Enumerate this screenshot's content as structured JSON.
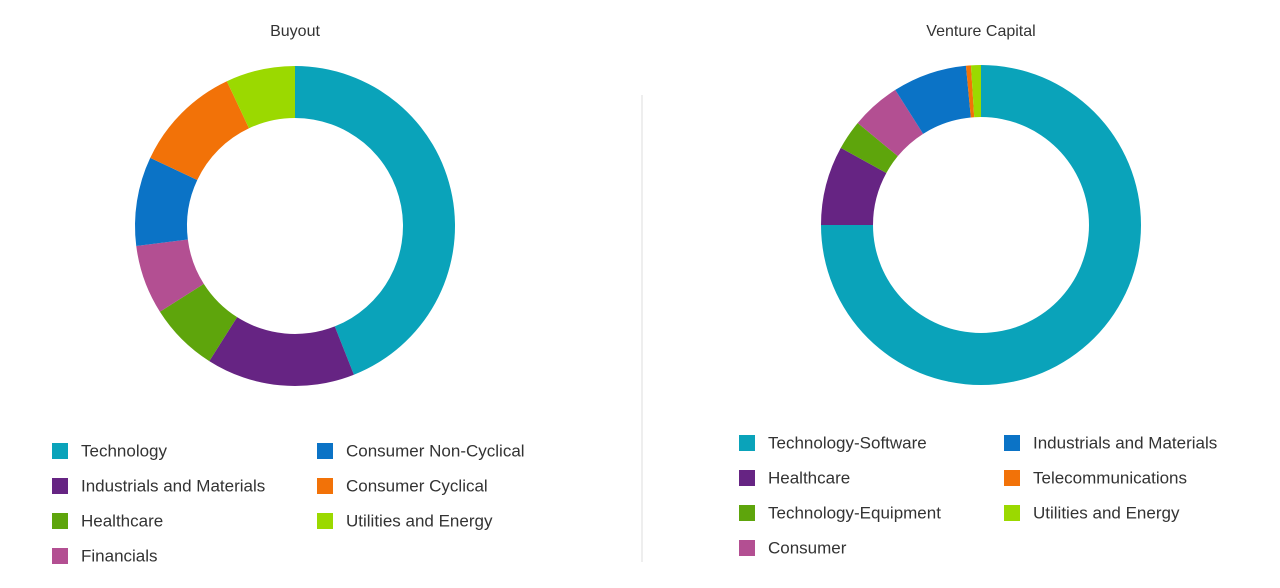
{
  "chart_data": [
    {
      "type": "donut",
      "title": "Buyout",
      "categories": [
        "Technology",
        "Industrials and Materials",
        "Healthcare",
        "Financials",
        "Consumer Non-Cyclical",
        "Consumer Cyclical",
        "Utilities and Energy"
      ],
      "values": [
        44,
        15,
        7,
        7,
        9,
        11,
        7
      ],
      "colors": [
        "#0aa3ba",
        "#662483",
        "#5ea50c",
        "#b34f92",
        "#0b73c6",
        "#f27208",
        "#9bd900"
      ]
    },
    {
      "type": "donut",
      "title": "Venture Capital",
      "categories": [
        "Technology-Software",
        "Healthcare",
        "Technology-Equipment",
        "Consumer",
        "Industrials and Materials",
        "Telecommunications",
        "Utilities and Energy"
      ],
      "values": [
        75,
        8,
        3,
        5,
        7.5,
        0.5,
        1
      ],
      "colors": [
        "#0aa3ba",
        "#662483",
        "#5ea50c",
        "#b34f92",
        "#0b73c6",
        "#f27208",
        "#9bd900"
      ]
    }
  ]
}
